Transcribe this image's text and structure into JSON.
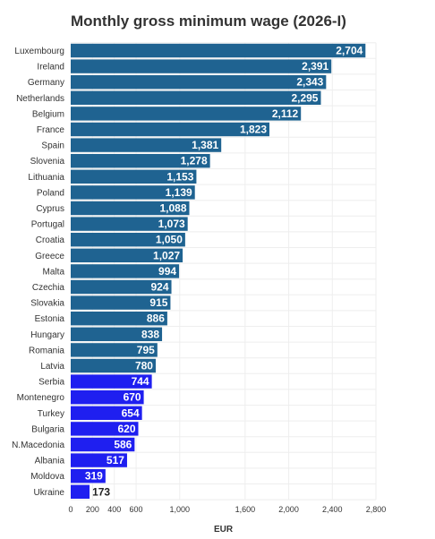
{
  "chart_data": {
    "type": "bar",
    "orientation": "horizontal",
    "title": "Monthly gross minimum wage (2026-I)",
    "xlabel": "EUR",
    "ylabel": "",
    "xlim": [
      0,
      2800
    ],
    "x_ticks": [
      0,
      200,
      400,
      600,
      1000,
      1600,
      2000,
      2400,
      2800
    ],
    "x_tick_labels": [
      "0",
      "200",
      "400",
      "600",
      "1,000",
      "1,600",
      "2,000",
      "2,400",
      "2,800"
    ],
    "grid": "x",
    "categories": [
      "Luxembourg",
      "Ireland",
      "Germany",
      "Netherlands",
      "Belgium",
      "France",
      "Spain",
      "Slovenia",
      "Lithuania",
      "Poland",
      "Cyprus",
      "Portugal",
      "Croatia",
      "Greece",
      "Malta",
      "Czechia",
      "Slovakia",
      "Estonia",
      "Hungary",
      "Romania",
      "Latvia",
      "Serbia",
      "Montenegro",
      "Turkey",
      "Bulgaria",
      "N.Macedonia",
      "Albania",
      "Moldova",
      "Ukraine"
    ],
    "values": [
      2704,
      2391,
      2343,
      2295,
      2112,
      1823,
      1381,
      1278,
      1153,
      1139,
      1088,
      1073,
      1050,
      1027,
      994,
      924,
      915,
      886,
      838,
      795,
      780,
      744,
      670,
      654,
      620,
      586,
      517,
      319,
      173
    ],
    "value_labels": [
      "2,704",
      "2,391",
      "2,343",
      "2,295",
      "2,112",
      "1,823",
      "1,381",
      "1,278",
      "1,153",
      "1,139",
      "1,088",
      "1,073",
      "1,050",
      "1,027",
      "994",
      "924",
      "915",
      "886",
      "838",
      "795",
      "780",
      "744",
      "670",
      "654",
      "620",
      "586",
      "517",
      "319",
      "173"
    ],
    "groups": [
      "eu",
      "eu",
      "eu",
      "eu",
      "eu",
      "eu",
      "eu",
      "eu",
      "eu",
      "eu",
      "eu",
      "eu",
      "eu",
      "eu",
      "eu",
      "eu",
      "eu",
      "eu",
      "eu",
      "eu",
      "eu",
      "other",
      "other",
      "other",
      "other",
      "other",
      "other",
      "other",
      "other"
    ],
    "colors": {
      "eu": "#1f6391",
      "other": "#1f1ff0"
    }
  }
}
